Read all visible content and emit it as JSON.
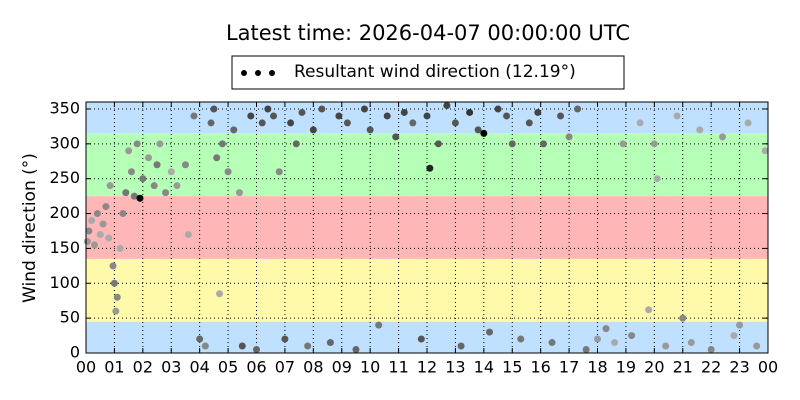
{
  "chart_data": {
    "type": "scatter",
    "title": "Latest time: 2026-04-07 00:00:00 UTC",
    "y_label": "Wind direction (°)",
    "xlim": [
      0,
      24
    ],
    "ylim": [
      0,
      360
    ],
    "xticks": [
      {
        "value": 0,
        "label": "00"
      },
      {
        "value": 1,
        "label": "01"
      },
      {
        "value": 2,
        "label": "02"
      },
      {
        "value": 3,
        "label": "03"
      },
      {
        "value": 4,
        "label": "04"
      },
      {
        "value": 5,
        "label": "05"
      },
      {
        "value": 6,
        "label": "06"
      },
      {
        "value": 7,
        "label": "07"
      },
      {
        "value": 8,
        "label": "08"
      },
      {
        "value": 9,
        "label": "09"
      },
      {
        "value": 10,
        "label": "10"
      },
      {
        "value": 11,
        "label": "11"
      },
      {
        "value": 12,
        "label": "12"
      },
      {
        "value": 13,
        "label": "13"
      },
      {
        "value": 14,
        "label": "14"
      },
      {
        "value": 15,
        "label": "15"
      },
      {
        "value": 16,
        "label": "16"
      },
      {
        "value": 17,
        "label": "17"
      },
      {
        "value": 18,
        "label": "18"
      },
      {
        "value": 19,
        "label": "19"
      },
      {
        "value": 20,
        "label": "20"
      },
      {
        "value": 21,
        "label": "21"
      },
      {
        "value": 22,
        "label": "22"
      },
      {
        "value": 23,
        "label": "23"
      },
      {
        "value": 24,
        "label": "00"
      }
    ],
    "yticks": [
      0,
      50,
      100,
      150,
      200,
      250,
      300,
      350
    ],
    "grid": true,
    "bands": [
      {
        "from": 0,
        "to": 45,
        "color": "#bfe1ff"
      },
      {
        "from": 45,
        "to": 135,
        "color": "#fffaaa"
      },
      {
        "from": 135,
        "to": 225,
        "color": "#ffb6b6"
      },
      {
        "from": 225,
        "to": 315,
        "color": "#b6ffb6"
      },
      {
        "from": 315,
        "to": 360,
        "color": "#bfe1ff"
      }
    ],
    "legend": "top",
    "series": [
      {
        "name": "Resultant wind direction (12.19°)",
        "color": "#000",
        "x": [
          0.05,
          0.1,
          0.2,
          0.3,
          0.4,
          0.5,
          0.6,
          0.7,
          0.8,
          0.85,
          0.95,
          1.0,
          1.05,
          1.1,
          1.2,
          1.3,
          1.4,
          1.5,
          1.6,
          1.7,
          1.8,
          1.9,
          2.0,
          2.2,
          2.4,
          2.5,
          2.6,
          2.8,
          3.0,
          3.2,
          3.5,
          3.6,
          3.8,
          4.0,
          4.2,
          4.4,
          4.5,
          4.6,
          4.7,
          4.8,
          5.0,
          5.2,
          5.4,
          5.5,
          5.8,
          6.0,
          6.2,
          6.4,
          6.6,
          6.8,
          7.0,
          7.2,
          7.4,
          7.6,
          7.8,
          8.0,
          8.3,
          8.6,
          8.9,
          9.2,
          9.5,
          9.8,
          10.0,
          10.3,
          10.6,
          10.9,
          11.2,
          11.5,
          11.8,
          12.0,
          12.1,
          12.4,
          12.7,
          13.0,
          13.2,
          13.5,
          13.8,
          14.0,
          14.2,
          14.5,
          14.8,
          15.0,
          15.3,
          15.6,
          15.9,
          16.1,
          16.4,
          16.7,
          17.0,
          17.3,
          17.6,
          18.0,
          18.3,
          18.6,
          18.9,
          19.2,
          19.5,
          19.8,
          20.0,
          20.1,
          20.4,
          20.8,
          21.0,
          21.3,
          21.6,
          22.0,
          22.4,
          22.8,
          23.0,
          23.3,
          23.6,
          23.9
        ],
        "values": [
          160,
          175,
          190,
          155,
          200,
          170,
          185,
          210,
          165,
          240,
          125,
          100,
          60,
          80,
          150,
          200,
          230,
          290,
          260,
          225,
          300,
          222,
          250,
          280,
          240,
          270,
          300,
          230,
          260,
          240,
          270,
          170,
          340,
          20,
          10,
          330,
          350,
          280,
          85,
          300,
          260,
          320,
          230,
          10,
          340,
          5,
          330,
          350,
          340,
          260,
          20,
          330,
          300,
          345,
          10,
          320,
          350,
          15,
          340,
          330,
          5,
          350,
          320,
          40,
          340,
          310,
          345,
          330,
          20,
          340,
          265,
          300,
          355,
          330,
          10,
          345,
          320,
          315,
          30,
          350,
          340,
          300,
          20,
          330,
          345,
          300,
          15,
          340,
          310,
          350,
          5,
          20,
          35,
          15,
          300,
          25,
          330,
          62,
          300,
          250,
          10,
          340,
          50,
          15,
          320,
          5,
          310,
          25,
          40,
          330,
          10,
          290
        ],
        "colors": [
          "#999",
          "#888",
          "#aaa",
          "#999",
          "#888",
          "#aaa",
          "#999",
          "#888",
          "#aaa",
          "#999",
          "#888",
          "#777",
          "#999",
          "#888",
          "#aaa",
          "#888",
          "#777",
          "#999",
          "#888",
          "#777",
          "#888",
          "#000",
          "#777",
          "#999",
          "#888",
          "#777",
          "#999",
          "#888",
          "#aaa",
          "#999",
          "#888",
          "#aaa",
          "#777",
          "#666",
          "#888",
          "#666",
          "#555",
          "#777",
          "#aaa",
          "#777",
          "#888",
          "#666",
          "#999",
          "#555",
          "#444",
          "#666",
          "#555",
          "#444",
          "#555",
          "#888",
          "#555",
          "#444",
          "#666",
          "#555",
          "#777",
          "#444",
          "#555",
          "#666",
          "#444",
          "#555",
          "#666",
          "#444",
          "#555",
          "#777",
          "#444",
          "#555",
          "#444",
          "#666",
          "#555",
          "#444",
          "#222",
          "#555",
          "#444",
          "#555",
          "#666",
          "#333",
          "#555",
          "#000",
          "#666",
          "#444",
          "#555",
          "#666",
          "#777",
          "#555",
          "#444",
          "#666",
          "#777",
          "#555",
          "#888",
          "#666",
          "#777",
          "#999",
          "#888",
          "#aaa",
          "#999",
          "#888",
          "#aaa",
          "#aaa",
          "#999",
          "#aaa",
          "#999",
          "#aaa",
          "#888",
          "#999",
          "#aaa",
          "#888",
          "#999",
          "#aaa",
          "#999",
          "#aaa",
          "#999",
          "#aaa"
        ]
      }
    ]
  }
}
